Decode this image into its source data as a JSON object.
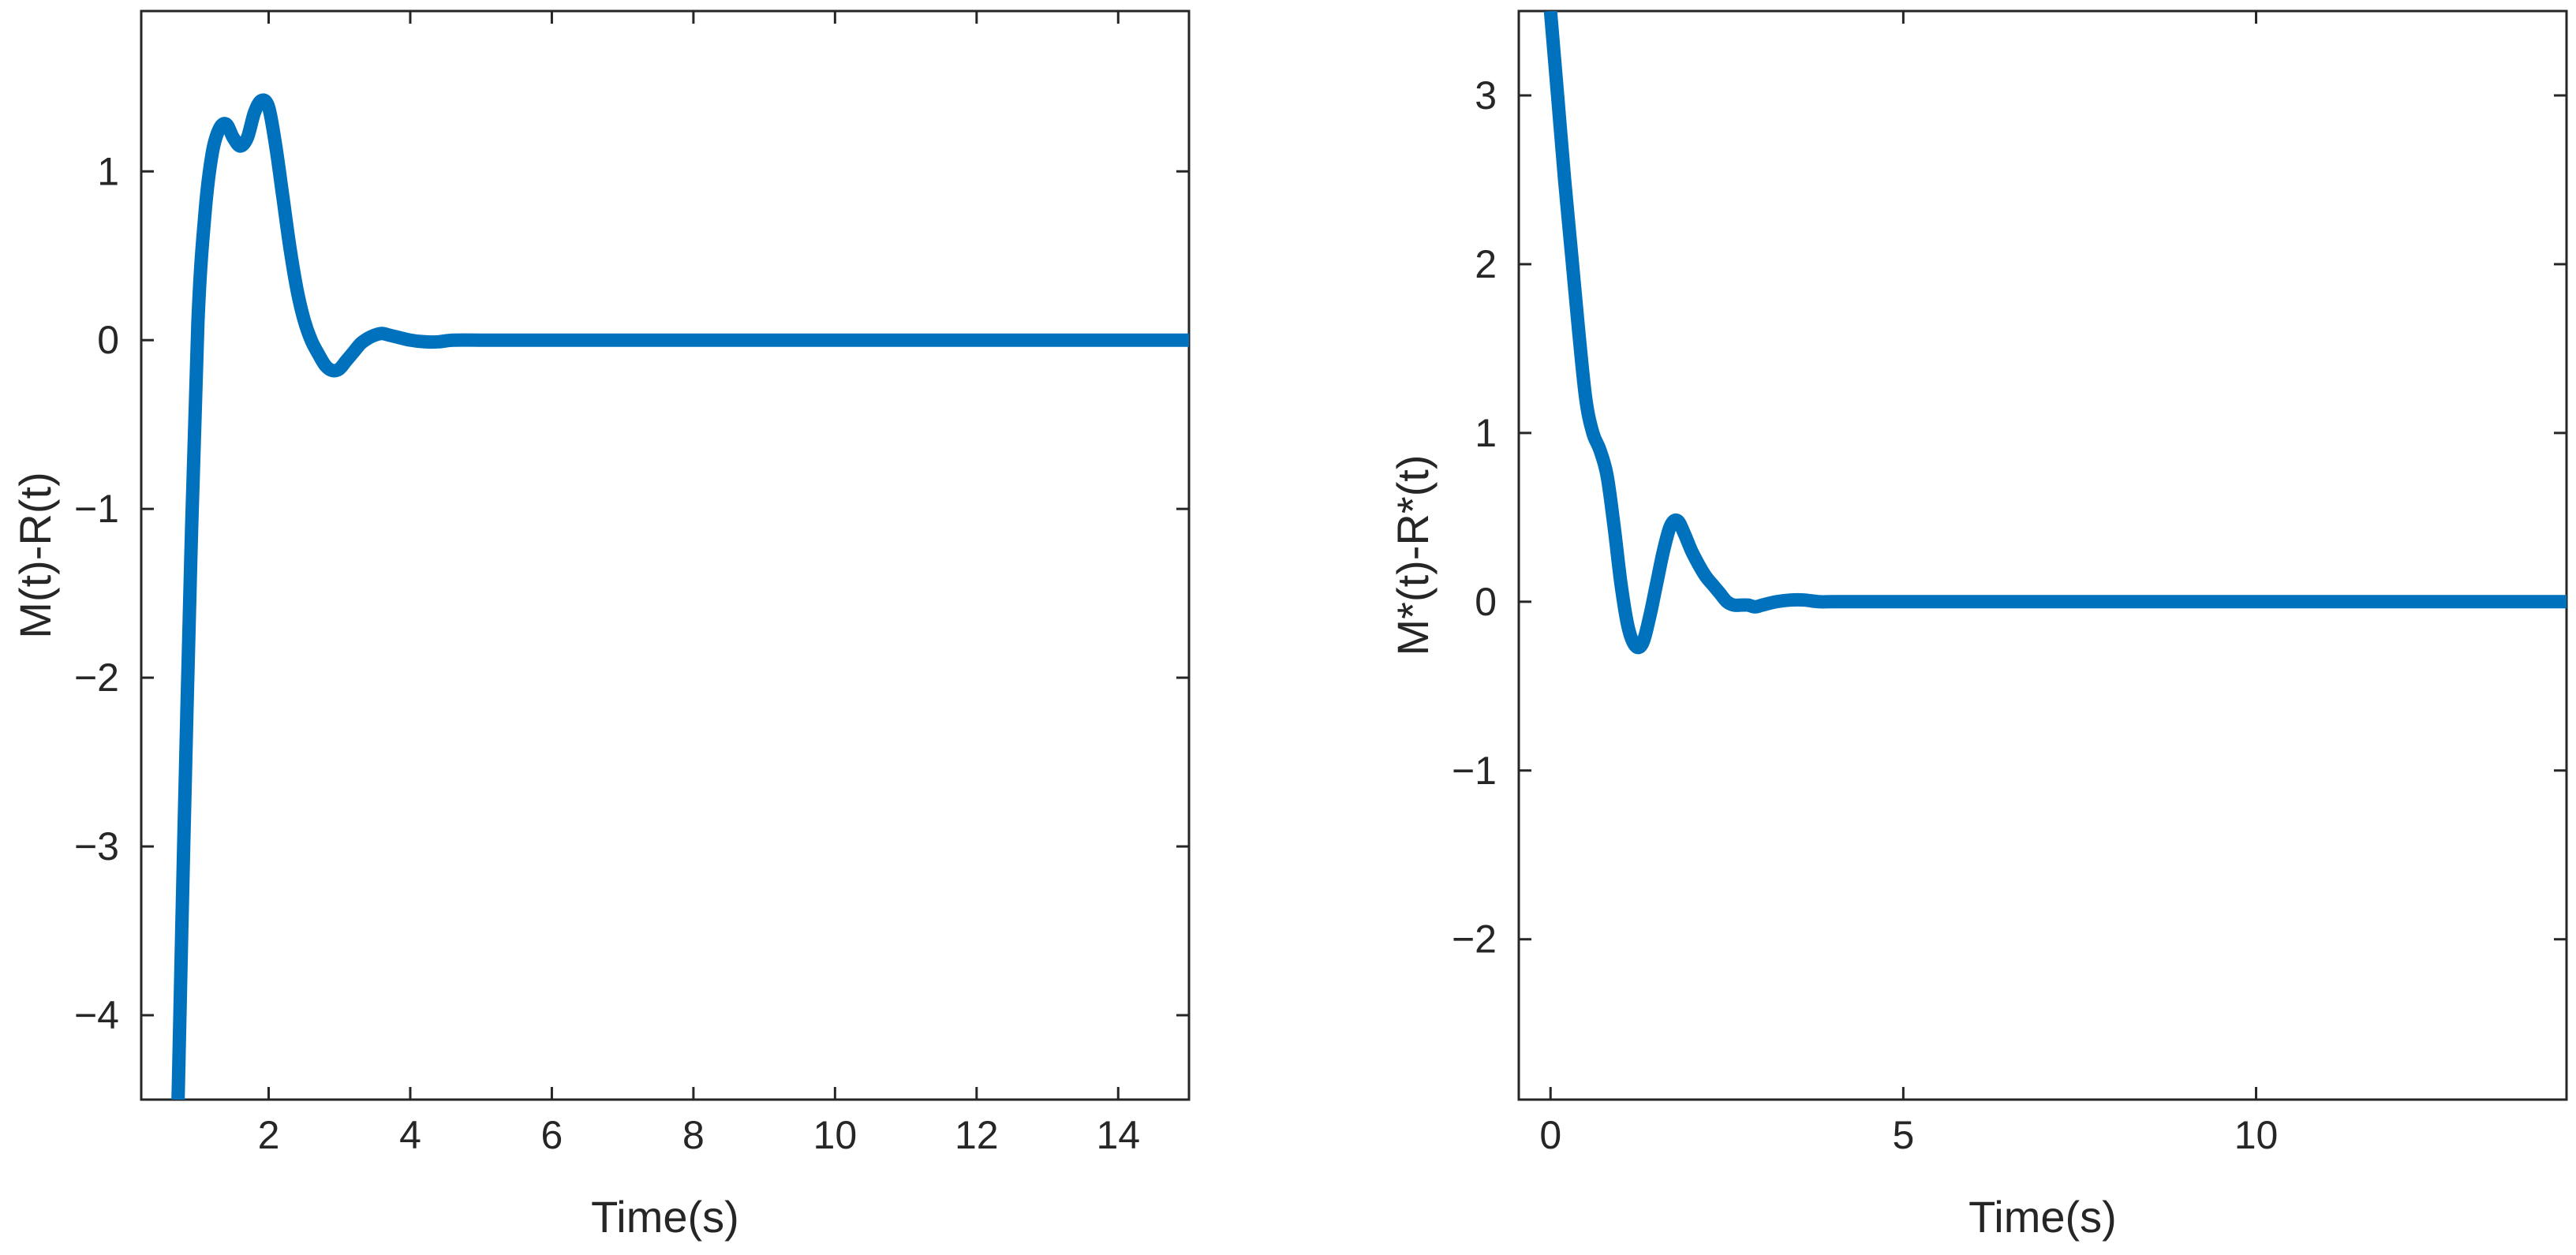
{
  "chart_data": [
    {
      "type": "line",
      "xlabel": "Time(s)",
      "ylabel": "M(t)-R(t)",
      "xlim": [
        0.2,
        15
      ],
      "ylim": [
        -4.5,
        1.95
      ],
      "xticks": [
        2,
        4,
        6,
        8,
        10,
        12,
        14
      ],
      "xtick_labels": [
        "2",
        "4",
        "6",
        "8",
        "10",
        "12",
        "14"
      ],
      "yticks": [
        -4,
        -3,
        -2,
        -1,
        0,
        1
      ],
      "ytick_labels": [
        "−4",
        "−3",
        "−2",
        "−1",
        "0",
        "1"
      ],
      "grid": false,
      "legend": "none",
      "colors": {
        "line": "#0072BD",
        "axes": "#262626"
      },
      "series": [
        {
          "x": [
            0.72,
            0.8,
            0.9,
            1.0,
            1.1,
            1.2,
            1.3,
            1.4,
            1.5,
            1.6,
            1.7,
            1.8,
            1.9,
            2.0,
            2.1,
            2.2,
            2.3,
            2.4,
            2.5,
            2.6,
            2.7,
            2.8,
            2.9,
            3.0,
            3.1,
            3.2,
            3.3,
            3.4,
            3.5,
            3.6,
            3.7,
            3.8,
            4.0,
            4.2,
            4.4,
            4.6,
            5.0,
            5.5,
            6.0,
            7.0,
            8.0,
            9.0,
            10.0,
            11.0,
            12.0,
            13.0,
            14.0,
            15.0
          ],
          "y": [
            -4.5,
            -3.0,
            -1.3,
            0.1,
            0.75,
            1.1,
            1.25,
            1.28,
            1.2,
            1.15,
            1.2,
            1.35,
            1.42,
            1.38,
            1.15,
            0.85,
            0.55,
            0.3,
            0.12,
            0.0,
            -0.08,
            -0.15,
            -0.18,
            -0.17,
            -0.12,
            -0.07,
            -0.02,
            0.01,
            0.03,
            0.04,
            0.03,
            0.02,
            0.0,
            -0.01,
            -0.01,
            0.0,
            0.0,
            0.0,
            0.0,
            0.0,
            0.0,
            0.0,
            0.0,
            0.0,
            0.0,
            0.0,
            0.0,
            0.0
          ]
        }
      ]
    },
    {
      "type": "line",
      "xlabel": "Time(s)",
      "ylabel": "M*(t)-R*(t)",
      "xlim": [
        -0.45,
        14.4
      ],
      "ylim": [
        -2.95,
        3.5
      ],
      "xticks": [
        0,
        5,
        10
      ],
      "xtick_labels": [
        "0",
        "5",
        "10"
      ],
      "yticks": [
        -2,
        -1,
        0,
        1,
        2,
        3
      ],
      "ytick_labels": [
        "−2",
        "−1",
        "0",
        "1",
        "2",
        "3"
      ],
      "grid": false,
      "legend": "none",
      "colors": {
        "line": "#0072BD",
        "axes": "#262626"
      },
      "series": [
        {
          "x": [
            0.0,
            0.1,
            0.2,
            0.3,
            0.4,
            0.5,
            0.6,
            0.7,
            0.8,
            0.9,
            1.0,
            1.1,
            1.2,
            1.3,
            1.4,
            1.5,
            1.6,
            1.7,
            1.8,
            1.9,
            2.0,
            2.1,
            2.2,
            2.3,
            2.4,
            2.5,
            2.6,
            2.7,
            2.8,
            2.9,
            3.0,
            3.2,
            3.4,
            3.6,
            3.8,
            4.0,
            4.5,
            5.0,
            5.5,
            6.0,
            7.0,
            8.0,
            9.0,
            10.0,
            11.0,
            12.0,
            13.0,
            14.0,
            14.4
          ],
          "y": [
            3.5,
            3.0,
            2.5,
            2.05,
            1.6,
            1.2,
            1.0,
            0.9,
            0.75,
            0.45,
            0.1,
            -0.15,
            -0.26,
            -0.25,
            -0.1,
            0.1,
            0.3,
            0.45,
            0.48,
            0.4,
            0.3,
            0.22,
            0.15,
            0.1,
            0.05,
            0.0,
            -0.02,
            -0.02,
            -0.02,
            -0.03,
            -0.02,
            0.0,
            0.01,
            0.01,
            0.0,
            0.0,
            0.0,
            0.0,
            0.0,
            0.0,
            0.0,
            0.0,
            0.0,
            0.0,
            0.0,
            0.0,
            0.0,
            0.0,
            0.0
          ]
        }
      ]
    }
  ]
}
